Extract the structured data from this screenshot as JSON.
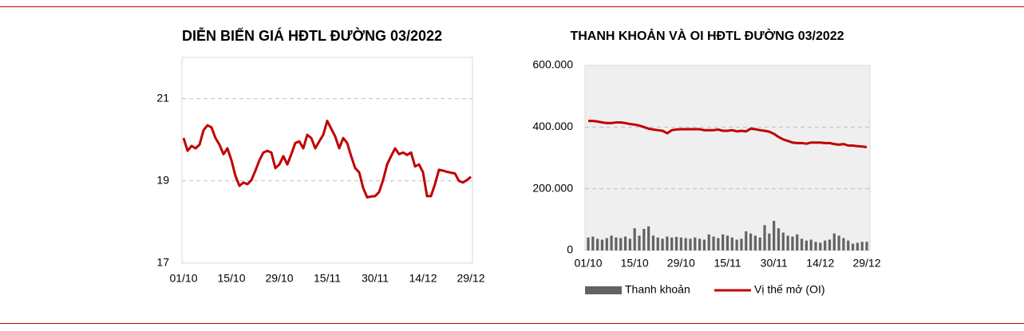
{
  "chart_data": [
    {
      "type": "line",
      "title": "DIỄN BIẾN GIÁ HĐTL ĐƯỜNG 03/2022",
      "categories": [
        "01/10",
        null,
        null,
        null,
        null,
        null,
        null,
        null,
        null,
        null,
        null,
        null,
        "15/10",
        null,
        null,
        null,
        null,
        null,
        null,
        null,
        null,
        null,
        null,
        null,
        "29/10",
        null,
        null,
        null,
        null,
        null,
        null,
        null,
        null,
        null,
        null,
        null,
        "15/11",
        null,
        null,
        null,
        null,
        null,
        null,
        null,
        null,
        null,
        null,
        null,
        "30/11",
        null,
        null,
        null,
        null,
        null,
        null,
        null,
        null,
        null,
        null,
        null,
        "14/12",
        null,
        null,
        null,
        null,
        null,
        null,
        null,
        null,
        null,
        null,
        null,
        "29/12"
      ],
      "values": [
        20.04,
        19.73,
        19.85,
        19.79,
        19.88,
        20.23,
        20.35,
        20.3,
        20.04,
        19.88,
        19.65,
        19.79,
        19.5,
        19.12,
        18.88,
        18.96,
        18.92,
        19.02,
        19.25,
        19.5,
        19.69,
        19.73,
        19.69,
        19.31,
        19.4,
        19.6,
        19.4,
        19.65,
        19.92,
        19.96,
        19.79,
        20.12,
        20.04,
        19.79,
        19.96,
        20.12,
        20.46,
        20.27,
        20.08,
        19.79,
        20.04,
        19.92,
        19.6,
        19.31,
        19.21,
        18.83,
        18.6,
        18.62,
        18.63,
        18.73,
        19.02,
        19.4,
        19.6,
        19.79,
        19.65,
        19.69,
        19.63,
        19.69,
        19.35,
        19.4,
        19.21,
        18.63,
        18.63,
        18.92,
        19.27,
        19.25,
        19.22,
        19.2,
        19.18,
        19.0,
        18.96,
        19.02,
        19.1
      ],
      "color": "#c00000",
      "ylim": [
        17,
        22
      ],
      "yticks": [
        17,
        19,
        21
      ],
      "grid": true
    },
    {
      "type": "combo",
      "title": "THANH KHOẢN VÀ OI HĐTL ĐƯỜNG 03/2022",
      "categories": [
        "01/10",
        null,
        null,
        null,
        null,
        null,
        null,
        null,
        null,
        null,
        "15/10",
        null,
        null,
        null,
        null,
        null,
        null,
        null,
        null,
        null,
        "29/10",
        null,
        null,
        null,
        null,
        null,
        null,
        null,
        null,
        null,
        "15/11",
        null,
        null,
        null,
        null,
        null,
        null,
        null,
        null,
        null,
        "30/11",
        null,
        null,
        null,
        null,
        null,
        null,
        null,
        null,
        null,
        "14/12",
        null,
        null,
        null,
        null,
        null,
        null,
        null,
        null,
        null,
        "29/12"
      ],
      "series": [
        {
          "name": "Thanh khoản",
          "type": "bar",
          "color": "#636363",
          "values": [
            42000,
            45000,
            38000,
            35000,
            40000,
            48000,
            42000,
            40000,
            45000,
            38000,
            72000,
            48000,
            70000,
            78000,
            48000,
            42000,
            38000,
            45000,
            42000,
            44000,
            42000,
            40000,
            38000,
            42000,
            38000,
            35000,
            52000,
            45000,
            40000,
            52000,
            48000,
            42000,
            35000,
            38000,
            62000,
            55000,
            48000,
            42000,
            82000,
            55000,
            96000,
            72000,
            58000,
            48000,
            45000,
            52000,
            38000,
            32000,
            35000,
            28000,
            25000,
            32000,
            35000,
            55000,
            48000,
            40000,
            32000,
            22000,
            25000,
            28000,
            28000
          ]
        },
        {
          "name": "Vị thế mở (OI)",
          "type": "line",
          "color": "#c00000",
          "values": [
            420000,
            420000,
            418000,
            415000,
            413000,
            413000,
            415000,
            415000,
            413000,
            410000,
            408000,
            405000,
            400000,
            395000,
            392000,
            390000,
            388000,
            380000,
            390000,
            392000,
            393000,
            393000,
            393000,
            393000,
            393000,
            390000,
            390000,
            390000,
            392000,
            388000,
            388000,
            390000,
            386000,
            388000,
            386000,
            395000,
            393000,
            390000,
            388000,
            385000,
            378000,
            368000,
            360000,
            355000,
            350000,
            348000,
            348000,
            346000,
            350000,
            350000,
            350000,
            348000,
            348000,
            345000,
            343000,
            345000,
            340000,
            340000,
            338000,
            337000,
            335000
          ]
        }
      ],
      "ylim": [
        0,
        600000
      ],
      "yticks": [
        0,
        {
          "value": 200000,
          "label": "200.000"
        },
        {
          "value": 400000,
          "label": "400.000"
        },
        {
          "value": 600000,
          "label": "600.000"
        }
      ],
      "grid": true
    }
  ]
}
